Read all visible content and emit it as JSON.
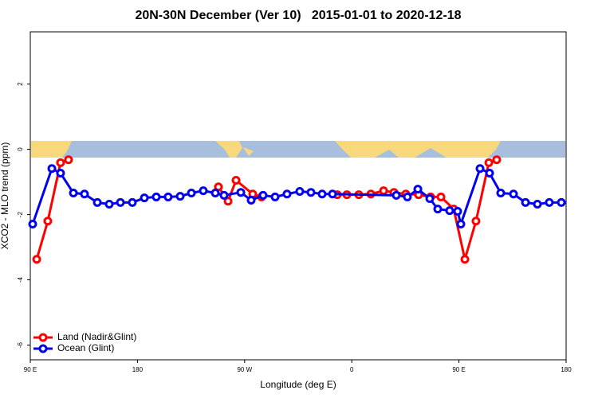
{
  "chart_data": {
    "type": "line",
    "title": "20N-30N December (Ver 10)   2015-01-01 to 2020-12-18",
    "x_label": "Longitude (deg E)",
    "y_label": "XCO2 - MLO trend (ppm)",
    "xlim": [
      90,
      540
    ],
    "ylim": [
      -6.45,
      3.6
    ],
    "xticks": [
      {
        "value": 90,
        "label": "90 E"
      },
      180,
      {
        "value": 270,
        "label": "90 W"
      },
      {
        "value": 360,
        "label": "0"
      },
      {
        "value": 450,
        "label": "90 E"
      },
      {
        "value": 540,
        "label": "180"
      }
    ],
    "yticks": [
      -6,
      -4,
      -2,
      0,
      2
    ],
    "legend": "bottomleft",
    "series": [
      {
        "name": "Land (Nadir&Glint)",
        "color": "#ff0000",
        "x": [
          95.4,
          104.7,
          115.4,
          122.1,
          null,
          248.0,
          256.1,
          262.8,
          276.8,
          284.2,
          null,
          347.8,
          355.9,
          365.9,
          376.0,
          386.7,
          395.4,
          405.4,
          416.1,
          426.2,
          434.9,
          445.6,
          455.0,
          464.3,
          475.1,
          481.7
        ],
        "values": [
          -3.37,
          -2.2,
          -0.41,
          -0.32,
          null,
          -1.15,
          -1.59,
          -0.95,
          -1.37,
          -1.46,
          null,
          -1.39,
          -1.39,
          -1.39,
          -1.37,
          -1.27,
          -1.32,
          -1.37,
          -1.39,
          -1.46,
          -1.46,
          -1.83,
          -3.37,
          -2.2,
          -0.41,
          -0.32
        ]
      },
      {
        "name": "Ocean (Glint)",
        "color": "#0000ee",
        "x": [
          92.0,
          108.1,
          115.4,
          126.2,
          135.5,
          146.3,
          156.3,
          165.7,
          175.7,
          185.8,
          195.8,
          205.8,
          215.9,
          225.3,
          235.3,
          245.4,
          252.7,
          266.8,
          275.5,
          285.5,
          295.6,
          305.6,
          316.3,
          325.7,
          335.1,
          343.8,
          397.4,
          406.7,
          415.5,
          425.5,
          432.2,
          442.2,
          448.9,
          451.6,
          467.7,
          475.7,
          485.1,
          495.8,
          505.9,
          515.9,
          525.9,
          536.0
        ],
        "values": [
          -2.29,
          -0.59,
          -0.73,
          -1.34,
          -1.37,
          -1.63,
          -1.68,
          -1.63,
          -1.63,
          -1.49,
          -1.46,
          -1.46,
          -1.44,
          -1.34,
          -1.27,
          -1.34,
          -1.41,
          -1.32,
          -1.56,
          -1.41,
          -1.46,
          -1.37,
          -1.29,
          -1.32,
          -1.37,
          -1.37,
          -1.41,
          -1.46,
          -1.22,
          -1.51,
          -1.83,
          -1.88,
          -1.9,
          -2.29,
          -0.59,
          -0.73,
          -1.34,
          -1.37,
          -1.63,
          -1.68,
          -1.63,
          -1.63
        ]
      }
    ]
  }
}
